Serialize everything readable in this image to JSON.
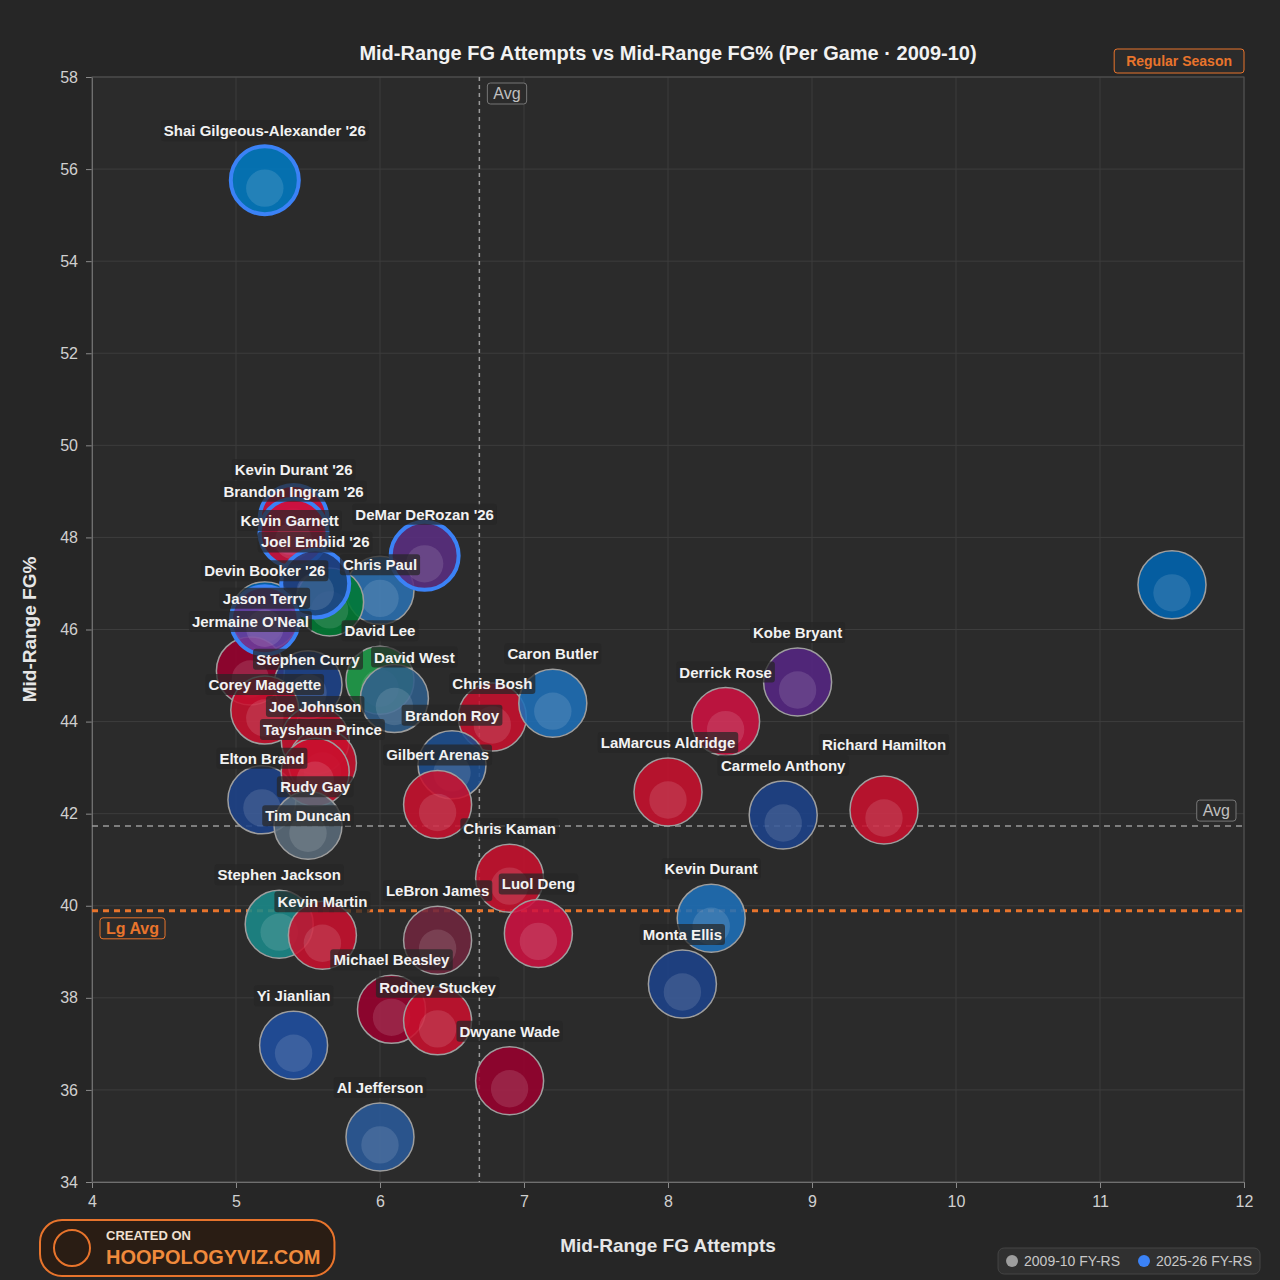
{
  "chart_data": {
    "type": "scatter",
    "title": "Mid-Range FG Attempts vs Mid-Range FG% (Per Game · 2009-10)",
    "badge": "Regular Season",
    "credit": [
      "CREATED ON",
      "HOOPOLOGYVIZ.COM"
    ],
    "x_label": "Mid-Range FG Attempts",
    "y_label": "Mid-Range FG%",
    "xlim": [
      4,
      12
    ],
    "xticks": [
      4,
      5,
      6,
      7,
      8,
      9,
      10,
      11,
      12
    ],
    "ylim": [
      34,
      58
    ],
    "yticks": [
      34,
      36,
      38,
      40,
      42,
      44,
      46,
      48,
      50,
      52,
      54,
      56,
      58
    ],
    "grid": true,
    "legend": "bottom-right",
    "marker": "circle",
    "data_labels": false,
    "reference_lines": [
      {
        "axis": "x",
        "value": 6.69,
        "label": "Avg",
        "color": "#9a9a9a",
        "line_style": "dashed"
      },
      {
        "axis": "y",
        "value": 41.73,
        "label": "Avg",
        "color": "#9a9a9a",
        "line_style": "dashed"
      },
      {
        "axis": "y",
        "value": 39.89,
        "label": "Lg Avg",
        "color": "#e8742c",
        "line_style": "dashed"
      }
    ],
    "series": [
      {
        "name": "2009-10 FY-RS",
        "color": "#9e9e9e",
        "labels": [
          null,
          "Jason Terry",
          "Chris Paul",
          "Kevin Garnett",
          "Jermaine O'Neal",
          "David Lee",
          "Stephen Curry",
          "Corey Maggette",
          "Joe Johnson",
          "Tayshaun Prince",
          "David West",
          "Chris Bosh",
          "Caron Butler",
          "Brandon Roy",
          "Kobe Bryant",
          "Derrick Rose",
          "LaMarcus Aldridge",
          "Carmelo Anthony",
          "Richard Hamilton",
          "Gilbert Arenas",
          "Elton Brand",
          "Rudy Gay",
          "Tim Duncan",
          "Stephen Jackson",
          "Chris Kaman",
          "Luol Deng",
          "Kevin Durant",
          "Monta Ellis",
          "Kevin Martin",
          "Michael Beasley",
          "LeBron James",
          "Rodney Stuckey",
          "Dwyane Wade",
          "Yi Jianlian",
          "Al Jefferson"
        ],
        "x": [
          11.5,
          5.2,
          6.0,
          5.65,
          5.1,
          6.0,
          5.5,
          5.2,
          5.55,
          5.6,
          6.1,
          6.78,
          7.2,
          6.5,
          8.9,
          8.4,
          8.0,
          8.8,
          9.5,
          6.4,
          5.18,
          5.55,
          5.5,
          5.3,
          6.9,
          7.1,
          8.3,
          8.1,
          5.6,
          6.08,
          6.4,
          6.4,
          6.9,
          5.4,
          6.0
        ],
        "values": [
          46.97,
          46.3,
          46.85,
          46.6,
          45.1,
          44.9,
          44.8,
          44.25,
          43.6,
          43.1,
          44.5,
          44.1,
          44.4,
          43.06,
          44.86,
          44.0,
          42.47,
          41.97,
          42.08,
          42.2,
          42.3,
          42.9,
          41.75,
          39.6,
          40.6,
          39.4,
          39.73,
          38.3,
          39.36,
          37.75,
          39.25,
          37.5,
          36.2,
          36.97,
          34.98
        ],
        "colors": [
          "#0064b1",
          "#0064b1",
          "#2a6fb0",
          "#007a33",
          "#98002e",
          "#1f9e4a",
          "#1d428a",
          "#c8102e",
          "#c8102e",
          "#c8102e",
          "#2f5d8a",
          "#c8102e",
          "#1e6fb8",
          "#1d4f91",
          "#552583",
          "#ce1141",
          "#c8102e",
          "#1d428a",
          "#c8102e",
          "#c8102e",
          "#1d428a",
          "#c8102e",
          "#5a6b7a",
          "#1a8a8a",
          "#c8102e",
          "#ce1141",
          "#1e6fb8",
          "#1d428a",
          "#c8102e",
          "#98002e",
          "#6f263d",
          "#c8102e",
          "#98002e",
          "#1f4fa0",
          "#2a5a9a"
        ]
      },
      {
        "name": "2025-26 FY-RS",
        "color": "#3b82f6",
        "labels": [
          "Shai Gilgeous-Alexander '26",
          "Kevin Durant '26",
          "Brandon Ingram '26",
          "DeMar DeRozan '26",
          "Joel Embiid '26",
          "Devin Booker '26"
        ],
        "x": [
          5.2,
          5.4,
          5.4,
          6.31,
          5.55,
          5.2
        ],
        "values": [
          55.76,
          48.4,
          48.1,
          47.6,
          47.0,
          46.2
        ],
        "colors": [
          "#007ac1",
          "#ce1141",
          "#ce1141",
          "#5a2d81",
          "#1d428a",
          "#6c3b9c"
        ]
      }
    ]
  }
}
